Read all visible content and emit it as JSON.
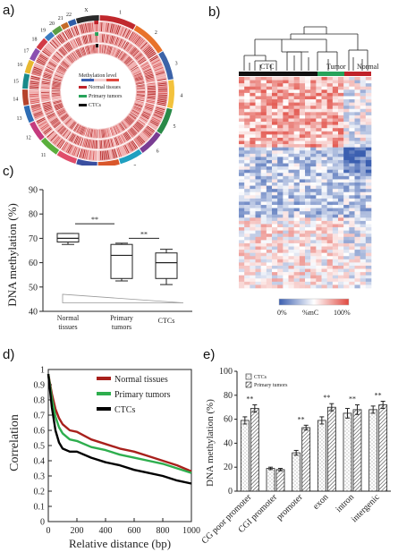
{
  "panels": {
    "a": "a)",
    "b": "b)",
    "c": "c)",
    "d": "d)",
    "e": "e)"
  },
  "circos": {
    "chromosomes": [
      "1",
      "2",
      "3",
      "4",
      "5",
      "6",
      "7",
      "8",
      "9",
      "10",
      "11",
      "12",
      "13",
      "14",
      "15",
      "16",
      "17",
      "18",
      "19",
      "20",
      "21",
      "22",
      "X"
    ],
    "legend_title": "Methylation level",
    "legend_items": [
      {
        "label": "Normal tissues",
        "color": "#c0222a"
      },
      {
        "label": "Primary tumors",
        "color": "#27a35a"
      },
      {
        "label": "CTCs",
        "color": "#111111"
      }
    ],
    "chrom_colors": [
      "#c0282d",
      "#e8722a",
      "#3c63a8",
      "#f3c23c",
      "#2a8a48",
      "#7a3d93",
      "#1f9fc0",
      "#d9572b",
      "#3a4fa0",
      "#e04d6a",
      "#5aae3c",
      "#c53b7e",
      "#2e6db4",
      "#b5432c",
      "#198a8a",
      "#e8b830",
      "#8a4fb0",
      "#d23a45",
      "#3b7bbf",
      "#5c9e45",
      "#c46b28",
      "#2d5da8",
      "#2a2a2a"
    ]
  },
  "chart_data": [
    {
      "type": "heatmap",
      "groups": [
        {
          "name": "CTC",
          "color": "#111111"
        },
        {
          "name": "Tumor",
          "color": "#27a35a"
        },
        {
          "name": "Normal",
          "color": "#c0222a"
        }
      ],
      "colorbar": {
        "min_label": "0%",
        "mid_label": "%mC",
        "max_label": "100%",
        "colors": [
          "#3b5fb0",
          "#ffffff",
          "#e0483f"
        ]
      }
    },
    {
      "type": "box",
      "ylabel": "DNA methylation (%)",
      "ylim": [
        40,
        90
      ],
      "yticks": [
        40,
        50,
        60,
        70,
        80,
        90
      ],
      "categories": [
        "Normal tissues",
        "Primary tumors",
        "CTCs"
      ],
      "boxes": [
        {
          "min": 67.5,
          "q1": 68.5,
          "median": 70.0,
          "q3": 72.0,
          "max": 72.0
        },
        {
          "min": 52.5,
          "q1": 53.5,
          "median": 63.0,
          "q3": 67.5,
          "max": 68.0
        },
        {
          "min": 51.0,
          "q1": 53.5,
          "median": 60.0,
          "q3": 64.0,
          "max": 65.5
        }
      ],
      "significance": [
        {
          "from": 0,
          "to": 1,
          "label": "**",
          "y": 76
        },
        {
          "from": 1,
          "to": 2,
          "label": "**",
          "y": 70
        }
      ]
    },
    {
      "type": "line",
      "xlabel": "Relative distance (bp)",
      "ylabel": "Correlation",
      "xlim": [
        0,
        1000
      ],
      "ylim": [
        0,
        1
      ],
      "xticks": [
        0,
        200,
        400,
        600,
        800,
        1000
      ],
      "yticks": [
        0,
        0.1,
        0.2,
        0.3,
        0.4,
        0.5,
        0.6,
        0.7,
        0.8,
        0.9,
        1
      ],
      "series": [
        {
          "name": "Normal tissues",
          "color": "#a8201c",
          "x": [
            0,
            25,
            50,
            75,
            100,
            150,
            200,
            300,
            400,
            500,
            600,
            700,
            800,
            900,
            1000
          ],
          "y": [
            0.97,
            0.84,
            0.74,
            0.68,
            0.64,
            0.6,
            0.59,
            0.54,
            0.51,
            0.48,
            0.46,
            0.43,
            0.4,
            0.37,
            0.33
          ]
        },
        {
          "name": "Primary tumors",
          "color": "#2eae4e",
          "x": [
            0,
            25,
            50,
            75,
            100,
            150,
            200,
            300,
            400,
            500,
            600,
            700,
            800,
            900,
            1000
          ],
          "y": [
            0.97,
            0.81,
            0.69,
            0.62,
            0.58,
            0.54,
            0.53,
            0.49,
            0.47,
            0.44,
            0.42,
            0.4,
            0.38,
            0.35,
            0.32
          ]
        },
        {
          "name": "CTCs",
          "color": "#000000",
          "x": [
            0,
            25,
            50,
            75,
            100,
            150,
            200,
            300,
            400,
            500,
            600,
            700,
            800,
            900,
            1000
          ],
          "y": [
            0.97,
            0.75,
            0.6,
            0.52,
            0.48,
            0.46,
            0.46,
            0.42,
            0.39,
            0.37,
            0.34,
            0.32,
            0.3,
            0.27,
            0.25
          ]
        }
      ],
      "legend_position": "top-right"
    },
    {
      "type": "bar",
      "ylabel": "DNA methylation (%)",
      "ylim": [
        0,
        100
      ],
      "yticks": [
        0,
        20,
        40,
        60,
        80,
        100
      ],
      "categories": [
        "CG poor promoter",
        "CGI promoter",
        "promoter",
        "exon",
        "intron",
        "intergenic"
      ],
      "series": [
        {
          "name": "CTCs",
          "values": [
            59,
            19,
            32,
            59,
            65,
            68
          ],
          "errors": [
            3,
            1,
            2,
            3,
            4,
            3
          ]
        },
        {
          "name": "Primary tumors",
          "values": [
            69,
            18,
            53,
            70,
            68,
            72
          ],
          "errors": [
            3,
            1,
            2,
            3,
            4,
            3
          ]
        }
      ],
      "significance": [
        "**",
        "",
        "**",
        "**",
        "**",
        "**"
      ],
      "legend_position": "top-left"
    }
  ]
}
